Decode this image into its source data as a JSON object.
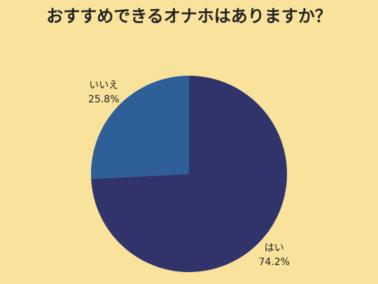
{
  "chart_data": {
    "type": "pie",
    "title": "おすすめできるオナホはありますか？",
    "categories": [
      "はい",
      "いいえ"
    ],
    "values": [
      74.2,
      25.8
    ],
    "value_labels": [
      "74.2%",
      "25.8%"
    ],
    "colors": [
      "#31346b",
      "#2e5f98"
    ]
  }
}
